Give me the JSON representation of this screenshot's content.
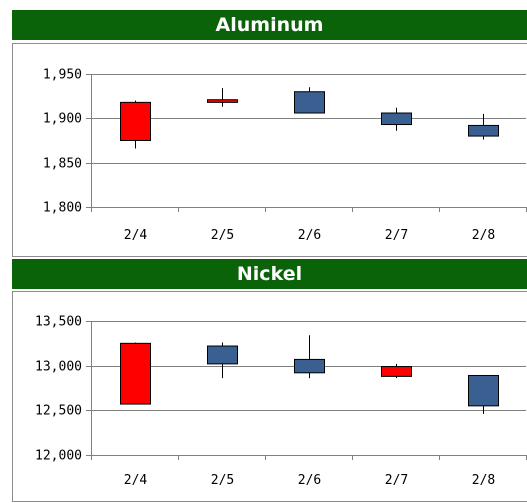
{
  "chart_data": [
    {
      "type": "candlestick",
      "title": "Aluminum",
      "categories": [
        "2/4",
        "2/5",
        "2/6",
        "2/7",
        "2/8"
      ],
      "ylim": [
        1800,
        1950
      ],
      "yticks": [
        1800,
        1850,
        1900,
        1950
      ],
      "ytick_labels": [
        "1,800",
        "1,850",
        "1,900",
        "1,950"
      ],
      "grid": "horizontal",
      "series": [
        {
          "values": [
            {
              "open": 1875,
              "high": 1920,
              "low": 1866,
              "close": 1918
            },
            {
              "open": 1918,
              "high": 1934,
              "low": 1913,
              "close": 1921
            },
            {
              "open": 1930,
              "high": 1935,
              "low": 1906,
              "close": 1906
            },
            {
              "open": 1906,
              "high": 1912,
              "low": 1886,
              "close": 1893
            },
            {
              "open": 1892,
              "high": 1905,
              "low": 1876,
              "close": 1880
            }
          ]
        }
      ]
    },
    {
      "type": "candlestick",
      "title": "Nickel",
      "categories": [
        "2/4",
        "2/5",
        "2/6",
        "2/7",
        "2/8"
      ],
      "ylim": [
        12000,
        13500
      ],
      "yticks": [
        12000,
        12500,
        13000,
        13500
      ],
      "ytick_labels": [
        "12,000",
        "12,500",
        "13,000",
        "13,500"
      ],
      "grid": "horizontal",
      "series": [
        {
          "values": [
            {
              "open": 12570,
              "high": 13260,
              "low": 12570,
              "close": 13250
            },
            {
              "open": 13220,
              "high": 13260,
              "low": 12860,
              "close": 13020
            },
            {
              "open": 13070,
              "high": 13340,
              "low": 12860,
              "close": 12920
            },
            {
              "open": 12880,
              "high": 13020,
              "low": 12860,
              "close": 12990
            },
            {
              "open": 12890,
              "high": 12890,
              "low": 12460,
              "close": 12550
            }
          ]
        }
      ]
    }
  ],
  "colors": {
    "up": "#ff0000",
    "down": "#3a5f91",
    "banner": "#0a6308",
    "grid": "#7f7f7f"
  }
}
